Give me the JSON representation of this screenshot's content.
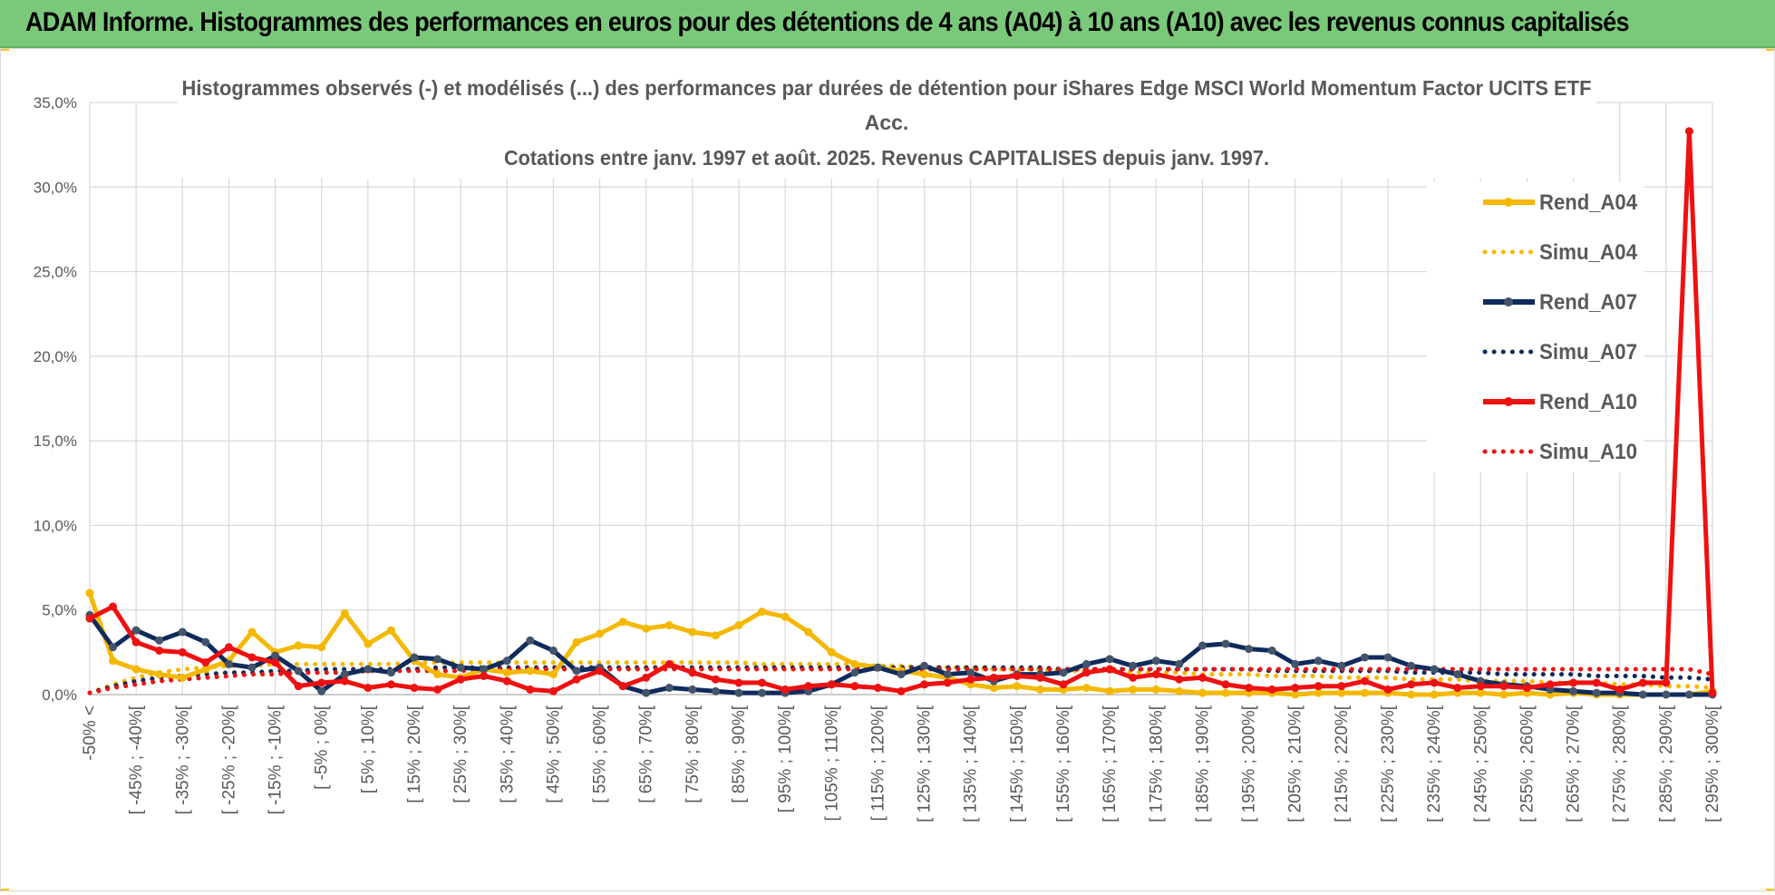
{
  "banner": {
    "title": "ADAM Informe. Histogrammes des performances en euros pour des détentions de 4 ans (A04) à 10 ans (A10) avec les revenus connus capitalisés"
  },
  "colors": {
    "banner_bg": "#7ac97a",
    "rend_a04": "#f5b800",
    "rend_a07": "#0f2a5c",
    "rend_a10": "#ee1111",
    "gridline": "#d9d9d9",
    "axis_text": "#595959",
    "title_text": "#595959"
  },
  "chart_data": {
    "type": "line",
    "title_lines": [
      "Histogrammes observés (-) et modélisés (...) des performances par durées de détention pour iShares Edge MSCI World Momentum Factor UCITS ETF",
      "Acc.",
      "Cotations entre janv. 1997 et août. 2025. Revenus CAPITALISES depuis janv. 1997."
    ],
    "ylim": [
      0,
      35
    ],
    "yticks": [
      0,
      5,
      10,
      15,
      20,
      25,
      30,
      35
    ],
    "ytick_labels": [
      "0,0%",
      "5,0%",
      "10,0%",
      "15,0%",
      "20,0%",
      "25,0%",
      "30,0%",
      "35,0%"
    ],
    "grid": true,
    "legend_position": "right",
    "categories": [
      "-50% <",
      "[ -50% ; -45%[",
      "[ -45% ; -40%[",
      "[ -40% ; -35%[",
      "[ -35% ; -30%[",
      "[ -30% ; -25%[",
      "[ -25% ; -20%[",
      "[ -20% ; -15%[",
      "[ -15% ; -10%[",
      "[ -10% ; -5%[",
      "[ -5% ; 0%[",
      "[ 0% ; 5%[",
      "[ 5% ; 10%[",
      "[ 10% ; 15%[",
      "[ 15% ; 20%[",
      "[ 20% ; 25%[",
      "[ 25% ; 30%[",
      "[ 30% ; 35%[",
      "[ 35% ; 40%[",
      "[ 40% ; 45%[",
      "[ 45% ; 50%[",
      "[ 50% ; 55%[",
      "[ 55% ; 60%[",
      "[ 60% ; 65%[",
      "[ 65% ; 70%[",
      "[ 70% ; 75%[",
      "[ 75% ; 80%[",
      "[ 80% ; 85%[",
      "[ 85% ; 90%[",
      "[ 90% ; 95%[",
      "[ 95% ; 100%[",
      "[ 100% ; 105%[",
      "[ 105% ; 110%[",
      "[ 110% ; 115%[",
      "[ 115% ; 120%[",
      "[ 120% ; 125%[",
      "[ 125% ; 130%[",
      "[ 130% ; 135%[",
      "[ 135% ; 140%[",
      "[ 140% ; 145%[",
      "[ 145% ; 150%[",
      "[ 150% ; 155%[",
      "[ 155% ; 160%[",
      "[ 160% ; 165%[",
      "[ 165% ; 170%[",
      "[ 170% ; 175%[",
      "[ 175% ; 180%[",
      "[ 180% ; 185%[",
      "[ 185% ; 190%[",
      "[ 190% ; 195%[",
      "[ 195% ; 200%[",
      "[ 200% ; 205%[",
      "[ 205% ; 210%[",
      "[ 210% ; 215%[",
      "[ 215% ; 220%[",
      "[ 220% ; 225%[",
      "[ 225% ; 230%[",
      "[ 230% ; 235%[",
      "[ 235% ; 240%[",
      "[ 240% ; 245%[",
      "[ 245% ; 250%[",
      "[ 250% ; 255%[",
      "[ 255% ; 260%[",
      "[ 260% ; 265%[",
      "[ 265% ; 270%[",
      "[ 270% ; 275%[",
      "[ 275% ; 280%[",
      "[ 280% ; 285%[",
      "[ 285% ; 290%[",
      "[ 290% ; 295%[",
      "[ 295% ; 300%["
    ],
    "visible_label_every": 2,
    "series": [
      {
        "name": "Rend_A04",
        "style": "solid",
        "color": "#f5b800",
        "values": [
          6.0,
          2.0,
          1.5,
          1.2,
          1.0,
          1.5,
          2.0,
          3.7,
          2.5,
          2.9,
          2.8,
          4.8,
          3.0,
          3.8,
          2.0,
          1.2,
          1.0,
          1.5,
          1.3,
          1.4,
          1.2,
          3.1,
          3.6,
          4.3,
          3.9,
          4.1,
          3.7,
          3.5,
          4.1,
          4.9,
          4.6,
          3.7,
          2.5,
          1.8,
          1.6,
          1.4,
          1.2,
          1.0,
          0.6,
          0.4,
          0.5,
          0.3,
          0.3,
          0.4,
          0.2,
          0.3,
          0.3,
          0.2,
          0.1,
          0.1,
          0.1,
          0.1,
          0.0,
          0.1,
          0.1,
          0.1,
          0.1,
          0.0,
          0.0,
          0.1,
          0.1,
          0.0,
          0.1,
          0.0,
          0.1,
          0.0,
          0.0,
          0.0,
          0.0,
          0.0,
          0.2
        ]
      },
      {
        "name": "Simu_A04",
        "style": "dotted",
        "color": "#f5b800",
        "values": [
          0.1,
          0.6,
          1.0,
          1.3,
          1.5,
          1.6,
          1.7,
          1.7,
          1.8,
          1.8,
          1.8,
          1.8,
          1.8,
          1.8,
          1.9,
          1.9,
          1.9,
          1.9,
          1.9,
          1.9,
          1.9,
          1.9,
          1.9,
          1.9,
          1.9,
          1.9,
          1.9,
          1.9,
          1.9,
          1.8,
          1.8,
          1.8,
          1.8,
          1.8,
          1.7,
          1.7,
          1.6,
          1.6,
          1.6,
          1.5,
          1.5,
          1.5,
          1.4,
          1.4,
          1.4,
          1.3,
          1.3,
          1.3,
          1.2,
          1.2,
          1.2,
          1.1,
          1.1,
          1.1,
          1.0,
          1.0,
          1.0,
          0.9,
          0.9,
          0.9,
          0.8,
          0.8,
          0.8,
          0.7,
          0.7,
          0.7,
          0.6,
          0.6,
          0.5,
          0.5,
          0.4
        ]
      },
      {
        "name": "Rend_A07",
        "style": "solid",
        "color": "#0f2a5c",
        "values": [
          4.7,
          2.8,
          3.8,
          3.2,
          3.7,
          3.1,
          1.8,
          1.6,
          2.3,
          1.4,
          0.2,
          1.2,
          1.5,
          1.3,
          2.2,
          2.1,
          1.6,
          1.5,
          2.0,
          3.2,
          2.6,
          1.4,
          1.6,
          0.5,
          0.1,
          0.4,
          0.3,
          0.2,
          0.1,
          0.1,
          0.1,
          0.2,
          0.6,
          1.3,
          1.6,
          1.2,
          1.7,
          1.2,
          1.3,
          0.8,
          1.2,
          1.2,
          1.3,
          1.8,
          2.1,
          1.7,
          2.0,
          1.8,
          2.9,
          3.0,
          2.7,
          2.6,
          1.8,
          2.0,
          1.7,
          2.2,
          2.2,
          1.7,
          1.5,
          1.2,
          0.8,
          0.6,
          0.5,
          0.3,
          0.2,
          0.1,
          0.1,
          0.0,
          0.0,
          0.0,
          0.0
        ]
      },
      {
        "name": "Simu_A07",
        "style": "dotted",
        "color": "#0f2a5c",
        "values": [
          0.1,
          0.5,
          0.8,
          1.0,
          1.1,
          1.2,
          1.3,
          1.3,
          1.4,
          1.4,
          1.5,
          1.5,
          1.5,
          1.5,
          1.5,
          1.6,
          1.6,
          1.6,
          1.6,
          1.6,
          1.6,
          1.6,
          1.6,
          1.6,
          1.6,
          1.6,
          1.6,
          1.6,
          1.6,
          1.6,
          1.6,
          1.6,
          1.6,
          1.6,
          1.6,
          1.6,
          1.6,
          1.6,
          1.6,
          1.6,
          1.6,
          1.6,
          1.5,
          1.5,
          1.5,
          1.5,
          1.5,
          1.5,
          1.5,
          1.5,
          1.5,
          1.4,
          1.4,
          1.4,
          1.4,
          1.4,
          1.4,
          1.3,
          1.3,
          1.3,
          1.3,
          1.2,
          1.2,
          1.2,
          1.2,
          1.1,
          1.1,
          1.1,
          1.0,
          1.0,
          0.9
        ]
      },
      {
        "name": "Rend_A10",
        "style": "solid",
        "color": "#ee1111",
        "values": [
          4.5,
          5.2,
          3.1,
          2.6,
          2.5,
          1.9,
          2.8,
          2.2,
          1.9,
          0.5,
          0.7,
          0.8,
          0.4,
          0.6,
          0.4,
          0.3,
          0.9,
          1.1,
          0.8,
          0.3,
          0.2,
          0.9,
          1.4,
          0.5,
          1.0,
          1.8,
          1.3,
          0.9,
          0.7,
          0.7,
          0.3,
          0.5,
          0.6,
          0.5,
          0.4,
          0.2,
          0.6,
          0.7,
          0.9,
          1.0,
          1.1,
          1.0,
          0.6,
          1.3,
          1.5,
          1.0,
          1.2,
          0.9,
          1.0,
          0.6,
          0.4,
          0.3,
          0.4,
          0.5,
          0.5,
          0.8,
          0.3,
          0.6,
          0.7,
          0.4,
          0.5,
          0.5,
          0.4,
          0.6,
          0.7,
          0.7,
          0.3,
          0.7,
          0.7,
          33.3,
          0.1
        ]
      },
      {
        "name": "Simu_A10",
        "style": "dotted",
        "color": "#ee1111",
        "values": [
          0.1,
          0.4,
          0.6,
          0.8,
          0.9,
          1.0,
          1.1,
          1.2,
          1.2,
          1.3,
          1.3,
          1.3,
          1.4,
          1.4,
          1.4,
          1.4,
          1.4,
          1.5,
          1.5,
          1.5,
          1.5,
          1.5,
          1.5,
          1.5,
          1.5,
          1.5,
          1.5,
          1.5,
          1.5,
          1.5,
          1.5,
          1.5,
          1.5,
          1.5,
          1.5,
          1.5,
          1.5,
          1.5,
          1.5,
          1.5,
          1.5,
          1.5,
          1.5,
          1.5,
          1.5,
          1.5,
          1.5,
          1.5,
          1.5,
          1.5,
          1.5,
          1.5,
          1.5,
          1.5,
          1.5,
          1.5,
          1.5,
          1.5,
          1.5,
          1.5,
          1.5,
          1.5,
          1.5,
          1.5,
          1.5,
          1.5,
          1.5,
          1.5,
          1.5,
          1.5,
          1.2
        ]
      }
    ]
  }
}
